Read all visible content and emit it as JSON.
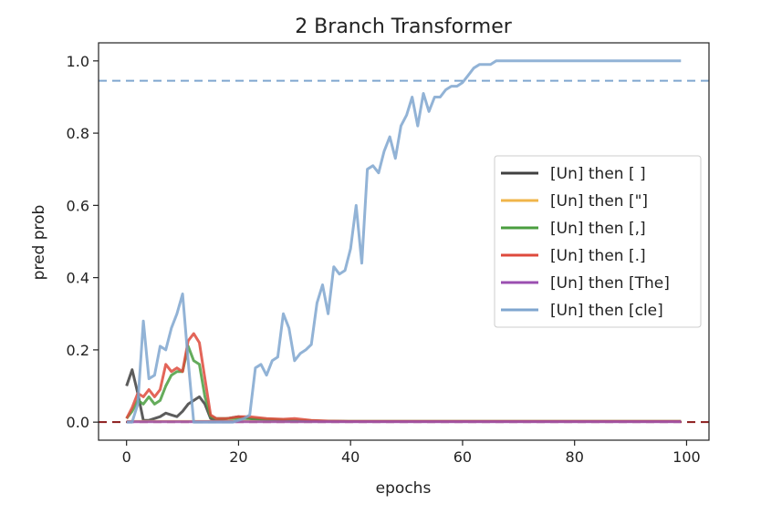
{
  "chart_data": {
    "type": "line",
    "title": "2 Branch Transformer",
    "xlabel": "epochs",
    "ylabel": "pred prob",
    "xlim": [
      -5,
      104
    ],
    "ylim": [
      -0.05,
      1.05
    ],
    "xticks": [
      0,
      20,
      40,
      60,
      80,
      100
    ],
    "xtick_labels": [
      "0",
      "20",
      "40",
      "60",
      "80",
      "100"
    ],
    "yticks": [
      0.0,
      0.2,
      0.4,
      0.6,
      0.8,
      1.0
    ],
    "ytick_labels": [
      "0.0",
      "0.2",
      "0.4",
      "0.6",
      "0.8",
      "1.0"
    ],
    "grid": false,
    "legend_position": "center-right",
    "reference_lines": [
      {
        "orientation": "horizontal",
        "y": 0.945,
        "color": "#7fa6cf",
        "style": "dashed"
      },
      {
        "orientation": "horizontal",
        "y": 0.0,
        "color": "#8b1a1a",
        "style": "dashed"
      }
    ],
    "series": [
      {
        "name": "[Un] then [ ]",
        "color": "#404040",
        "x": [
          0,
          1,
          2,
          3,
          4,
          5,
          6,
          7,
          8,
          9,
          10,
          11,
          12,
          13,
          14,
          15,
          16,
          18,
          20,
          22,
          25,
          30,
          40,
          60,
          80,
          99
        ],
        "y": [
          0.1,
          0.145,
          0.08,
          0.005,
          0.005,
          0.01,
          0.015,
          0.025,
          0.02,
          0.015,
          0.03,
          0.05,
          0.06,
          0.07,
          0.05,
          0.01,
          0.005,
          0.01,
          0.015,
          0.01,
          0.005,
          0.003,
          0.002,
          0.002,
          0.002,
          0.002
        ]
      },
      {
        "name": "[Un] then [\"]",
        "color": "#f0b54a",
        "x": [
          0,
          20,
          40,
          60,
          80,
          99
        ],
        "y": [
          0.002,
          0.002,
          0.002,
          0.002,
          0.002,
          0.002
        ]
      },
      {
        "name": "[Un] then [,]",
        "color": "#4a9e3f",
        "x": [
          0,
          1,
          2,
          3,
          4,
          5,
          6,
          7,
          8,
          9,
          10,
          11,
          12,
          13,
          14,
          15,
          16,
          18,
          20,
          22,
          25,
          30,
          35,
          40,
          60,
          80,
          99
        ],
        "y": [
          0.01,
          0.03,
          0.06,
          0.05,
          0.07,
          0.05,
          0.06,
          0.1,
          0.13,
          0.14,
          0.14,
          0.21,
          0.17,
          0.16,
          0.07,
          0.015,
          0.01,
          0.01,
          0.01,
          0.01,
          0.008,
          0.005,
          0.003,
          0.002,
          0.002,
          0.002,
          0.002
        ]
      },
      {
        "name": "[Un] then [.]",
        "color": "#de4a3c",
        "x": [
          0,
          1,
          2,
          3,
          4,
          5,
          6,
          7,
          8,
          9,
          10,
          11,
          12,
          13,
          14,
          15,
          16,
          18,
          20,
          22,
          25,
          28,
          30,
          33,
          36,
          40,
          60,
          80,
          99
        ],
        "y": [
          0.01,
          0.04,
          0.08,
          0.07,
          0.09,
          0.07,
          0.09,
          0.16,
          0.14,
          0.15,
          0.14,
          0.225,
          0.245,
          0.22,
          0.12,
          0.02,
          0.01,
          0.01,
          0.015,
          0.015,
          0.01,
          0.008,
          0.01,
          0.005,
          0.003,
          0.002,
          0.002,
          0.002,
          0.002
        ]
      },
      {
        "name": "[Un] then [The]",
        "color": "#9b4fb0",
        "x": [
          0,
          20,
          40,
          60,
          80,
          99
        ],
        "y": [
          0.001,
          0.001,
          0.001,
          0.001,
          0.001,
          0.001
        ]
      },
      {
        "name": "[Un] then [cle]",
        "color": "#7fa6cf",
        "x": [
          0,
          1,
          2,
          3,
          4,
          5,
          6,
          7,
          8,
          9,
          10,
          11,
          12,
          13,
          14,
          15,
          16,
          17,
          18,
          19,
          20,
          21,
          22,
          23,
          24,
          25,
          26,
          27,
          28,
          29,
          30,
          31,
          32,
          33,
          34,
          35,
          36,
          37,
          38,
          39,
          40,
          41,
          42,
          43,
          44,
          45,
          46,
          47,
          48,
          49,
          50,
          51,
          52,
          53,
          54,
          55,
          56,
          57,
          58,
          59,
          60,
          61,
          62,
          63,
          64,
          65,
          66,
          67,
          68,
          70,
          75,
          80,
          90,
          99
        ],
        "y": [
          0.0,
          0.0,
          0.05,
          0.28,
          0.12,
          0.13,
          0.21,
          0.2,
          0.26,
          0.3,
          0.355,
          0.17,
          0.0,
          0.0,
          0.0,
          0.0,
          0.0,
          0.0,
          0.0,
          0.0,
          0.005,
          0.01,
          0.02,
          0.15,
          0.16,
          0.13,
          0.17,
          0.18,
          0.3,
          0.26,
          0.17,
          0.19,
          0.2,
          0.215,
          0.33,
          0.38,
          0.3,
          0.43,
          0.41,
          0.42,
          0.48,
          0.6,
          0.44,
          0.7,
          0.71,
          0.69,
          0.75,
          0.79,
          0.73,
          0.82,
          0.85,
          0.9,
          0.82,
          0.91,
          0.86,
          0.9,
          0.9,
          0.92,
          0.93,
          0.93,
          0.94,
          0.96,
          0.98,
          0.99,
          0.99,
          0.99,
          1.0,
          1.0,
          1.0,
          1.0,
          1.0,
          1.0,
          1.0,
          1.0
        ]
      }
    ]
  }
}
